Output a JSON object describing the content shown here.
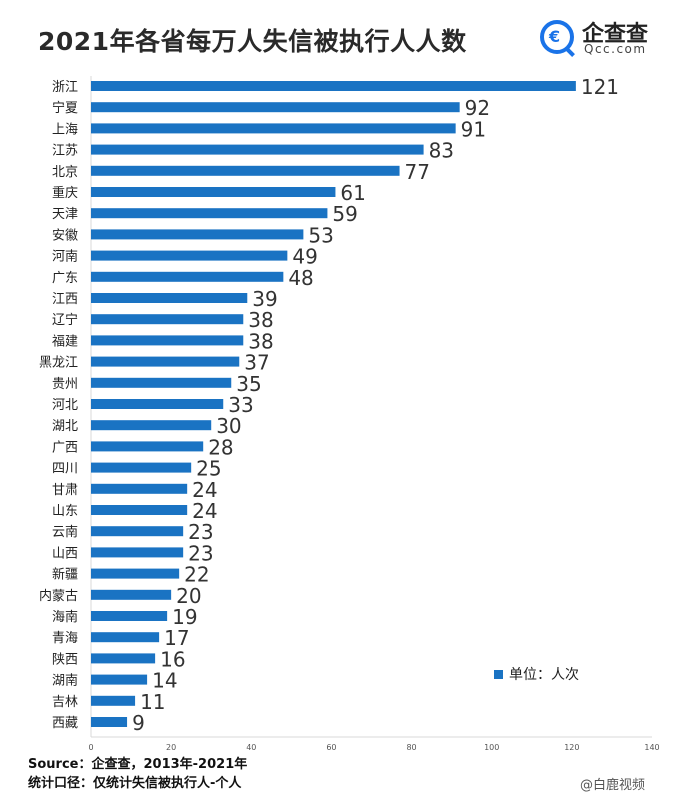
{
  "header": {
    "title": "2021年各省每万人失信被执行人人数",
    "brand_name": "企查查",
    "brand_domain": "Qcc.com",
    "brand_icon": "magnifier-logo-icon"
  },
  "legend": {
    "label": "单位：人次"
  },
  "source": {
    "line1": "Source：企查查，2013年-2021年",
    "line2": "统计口径：仅统计失信被执行人-个人"
  },
  "footer_watermark": "@白鹿视频",
  "colors": {
    "bar": "#1a73c3",
    "brand": "#1a73e8",
    "axis": "#d9d9d9"
  },
  "chart_data": {
    "type": "bar",
    "orientation": "horizontal",
    "title": "2021年各省每万人失信被执行人人数",
    "xlabel": "",
    "ylabel": "",
    "unit": "单位：人次",
    "xlim": [
      0,
      140
    ],
    "x_ticks": [
      0,
      20,
      40,
      60,
      80,
      100,
      120,
      140
    ],
    "grid": false,
    "legend_position": "bottom-right",
    "categories": [
      "浙江",
      "宁夏",
      "上海",
      "江苏",
      "北京",
      "重庆",
      "天津",
      "安徽",
      "河南",
      "广东",
      "江西",
      "辽宁",
      "福建",
      "黑龙江",
      "贵州",
      "河北",
      "湖北",
      "广西",
      "四川",
      "甘肃",
      "山东",
      "云南",
      "山西",
      "新疆",
      "内蒙古",
      "海南",
      "青海",
      "陕西",
      "湖南",
      "吉林",
      "西藏"
    ],
    "values": [
      121,
      92,
      91,
      83,
      77,
      61,
      59,
      53,
      49,
      48,
      39,
      38,
      38,
      37,
      35,
      33,
      30,
      28,
      25,
      24,
      24,
      23,
      23,
      22,
      20,
      19,
      17,
      16,
      14,
      11,
      9
    ]
  }
}
